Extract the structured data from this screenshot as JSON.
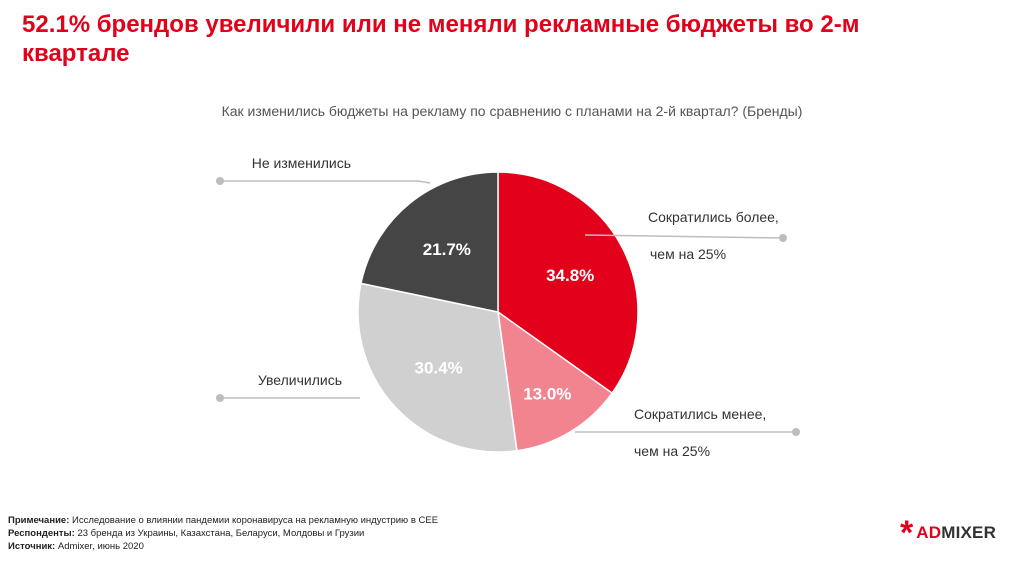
{
  "headline": "52.1% брендов увеличили или не меняли рекламные бюджеты во 2-м квартале",
  "chart_data": {
    "type": "pie",
    "title": "Как изменились бюджеты на рекламу по сравнению с планами на 2-й квартал? (Бренды)",
    "slices": [
      {
        "label": "Сократились более, чем на 25%",
        "label_lines": [
          "Сократились более,",
          "чем на 25%"
        ],
        "value": 34.8,
        "display": "34.8%",
        "color": "#e2001a",
        "value_color": "#ffffff"
      },
      {
        "label": "Сократились менее, чем на 25%",
        "label_lines": [
          "Сократились менее,",
          "чем на 25%"
        ],
        "value": 13.0,
        "display": "13.0%",
        "color": "#f28490",
        "value_color": "#ffffff"
      },
      {
        "label": "Увеличились",
        "label_lines": [
          "Увеличились"
        ],
        "value": 30.4,
        "display": "30.4%",
        "color": "#d0d0d0",
        "value_color": "#ffffff"
      },
      {
        "label": "Не изменились",
        "label_lines": [
          "Не изменились"
        ],
        "value": 21.7,
        "display": "21.7%",
        "color": "#454545",
        "value_color": "#ffffff"
      }
    ]
  },
  "notes": {
    "note_label": "Примечание:",
    "note_text": " Исследование о влиянии пандемии коронавируса на рекламную индустрию в СЕЕ",
    "respondents_label": "Респонденты:",
    "respondents_text": " 23 бренда из Украины, Казахстана, Беларуси, Молдовы и Грузии",
    "source_label": "Источник:",
    "source_text": " Admixer, июнь 2020"
  },
  "logo": {
    "star": "*",
    "brand_ad": "AD",
    "brand_rest": "MIXER"
  }
}
